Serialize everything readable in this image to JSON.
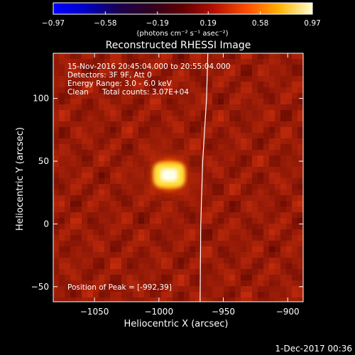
{
  "chart_data": {
    "type": "heatmap",
    "title": "Reconstructed RHESSI Image",
    "xlabel": "Heliocentric X (arcsec)",
    "ylabel": "Heliocentric Y (arcsec)",
    "xlim": [
      -1082,
      -888
    ],
    "ylim": [
      -62,
      136
    ],
    "x_ticks": [
      -1050,
      -1000,
      -950,
      -900
    ],
    "x_tick_labels": [
      "−1050",
      "−1000",
      "−950",
      "−900"
    ],
    "y_ticks": [
      -50,
      0,
      50,
      100
    ],
    "y_tick_labels": [
      "−50",
      "0",
      "50",
      "100"
    ],
    "colorbar": {
      "range": [
        -0.97,
        0.97
      ],
      "ticks": [
        -0.97,
        -0.58,
        -0.19,
        0.19,
        0.58,
        0.97
      ],
      "tick_labels": [
        "−0.97",
        "−0.58",
        "−0.19",
        "0.19",
        "0.58",
        "0.97"
      ],
      "unit_label": "(photons cm⁻² s⁻¹ asec⁻²)"
    },
    "annotations": {
      "time": "15-Nov-2016 20:45:04.000 to 20:55:04.000",
      "detectors": "Detectors: 3F 9F, Att 0",
      "energy": "Energy Range: 3.0 - 6.0 keV",
      "clean": "Clean",
      "counts": "Total counts: 3.07E+04",
      "peak": "Position of Peak = [-992,39]"
    },
    "peak": {
      "x": -992,
      "y": 39,
      "value": 0.97
    },
    "background_level": 0.3,
    "solar_limb": [
      {
        "x": -962,
        "y": 136
      },
      {
        "x": -963,
        "y": 100
      },
      {
        "x": -966,
        "y": 50
      },
      {
        "x": -967.5,
        "y": 0
      },
      {
        "x": -968,
        "y": -62
      }
    ],
    "grid": false
  },
  "footer": {
    "date": "1-Dec-2017 00:36"
  }
}
